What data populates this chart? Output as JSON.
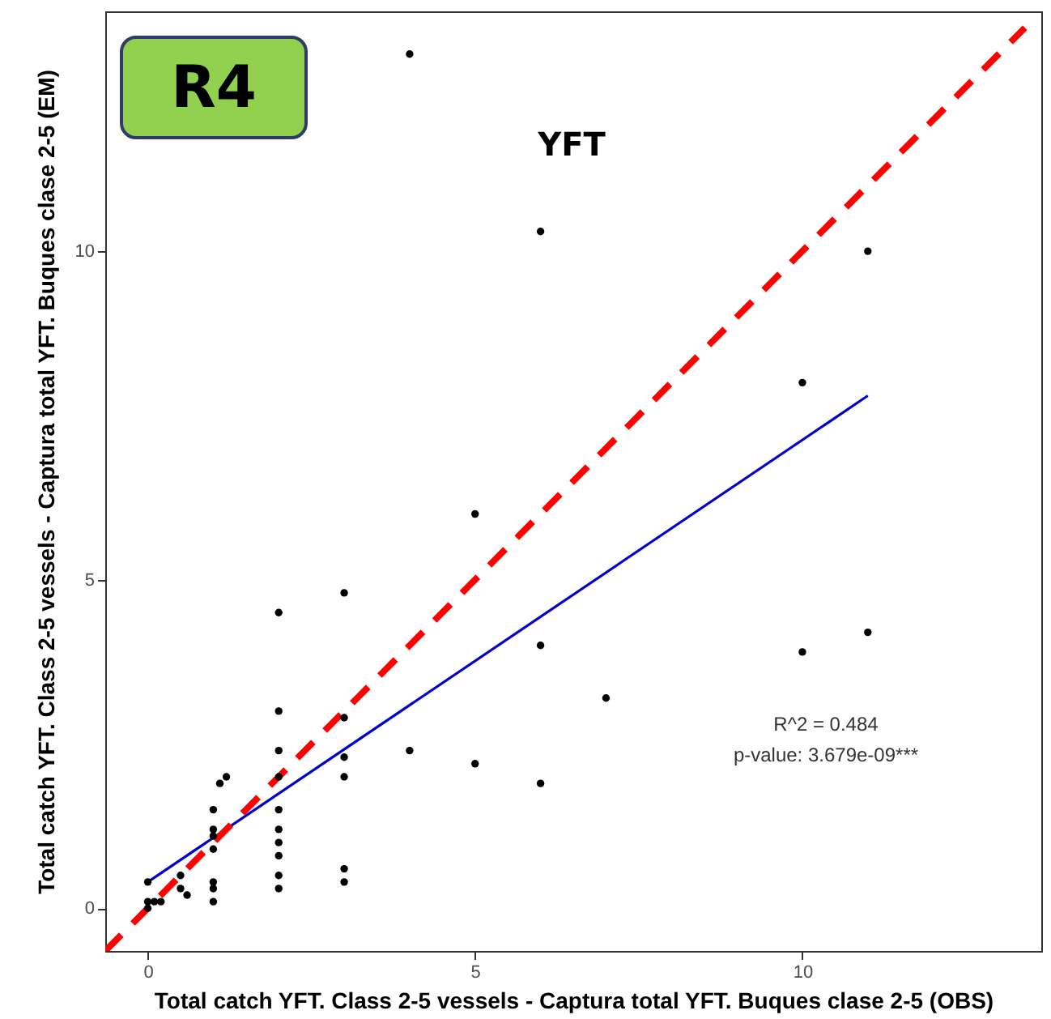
{
  "chart_data": {
    "type": "scatter",
    "title": "YFT",
    "xlabel": "Total catch YFT. Class 2-5 vessels - Captura total YFT. Buques clase 2-5 (OBS)",
    "ylabel": "Total catch YFT. Class 2-5 vessels - Captura total YFT. Buques clase 2-5 (EM)",
    "annotations": [
      "R4",
      "R^2 = 0.484",
      "p-value: 3.679e-09***"
    ],
    "xlim": [
      -0.65,
      13.65
    ],
    "ylim": [
      -0.65,
      13.65
    ],
    "xticks": [
      0,
      5,
      10
    ],
    "yticks": [
      0,
      5,
      10
    ],
    "series": [
      {
        "type": "scatter",
        "color": "#000000",
        "marker": "circle",
        "x": [
          0,
          0,
          0,
          0.1,
          0.2,
          0.5,
          0.5,
          0.6,
          1,
          1,
          1,
          1,
          1,
          1,
          1,
          1.1,
          1.2,
          2,
          2,
          2,
          2,
          2,
          2,
          2,
          2,
          2,
          2,
          3,
          3,
          3,
          3,
          3,
          3,
          4,
          4,
          5,
          5,
          6,
          6,
          6,
          7,
          10,
          10,
          11,
          11
        ],
        "values": [
          0.4,
          0,
          0.1,
          0.1,
          0.1,
          0.5,
          0.3,
          0.2,
          1.5,
          1.2,
          1.1,
          0.9,
          0.4,
          0.3,
          0.1,
          1.9,
          2.0,
          4.5,
          3,
          2.4,
          2,
          1.5,
          1.2,
          1,
          0.8,
          0.5,
          0.3,
          4.8,
          2.9,
          2.3,
          2,
          0.6,
          0.4,
          13,
          2.4,
          6,
          2.2,
          10.3,
          4,
          1.9,
          3.2,
          8,
          3.9,
          10,
          4.2
        ]
      },
      {
        "type": "line",
        "color": "#0000cd",
        "marker": "none",
        "line_style": "solid",
        "x": [
          0,
          11
        ],
        "values": [
          0.4,
          7.8
        ]
      },
      {
        "type": "line",
        "color": "#ff0000",
        "marker": "none",
        "line_style": "dashed",
        "x": [
          -0.65,
          13.4
        ],
        "values": [
          -0.65,
          13.4
        ]
      }
    ]
  }
}
